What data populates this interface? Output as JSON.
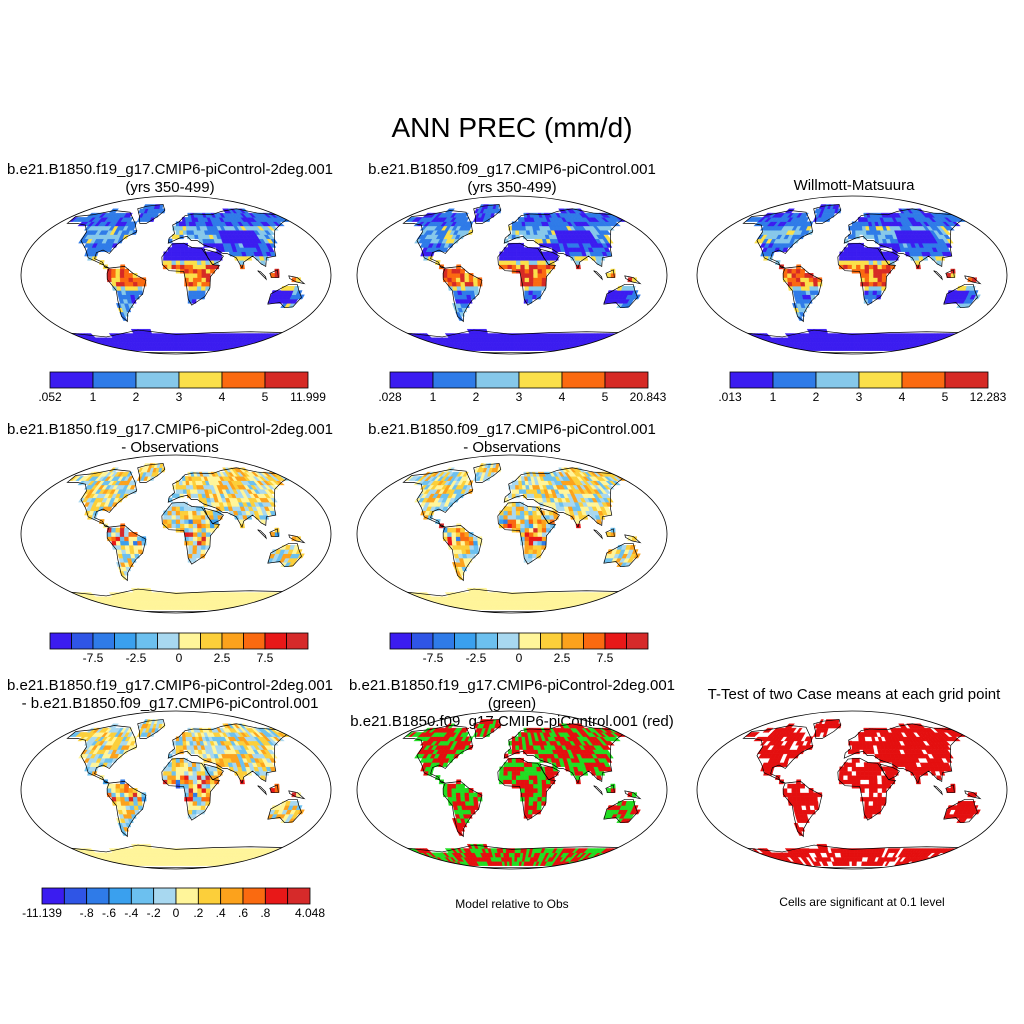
{
  "title": "ANN PREC (mm/d)",
  "panels": [
    {
      "title": "b.e21.B1850.f19_g17.CMIP6-piControl-2deg.001\n(yrs 350-499)"
    },
    {
      "title": "b.e21.B1850.f09_g17.CMIP6-piControl.001\n(yrs 350-499)"
    },
    {
      "title": "Willmott-Matsuura"
    },
    {
      "title": "b.e21.B1850.f19_g17.CMIP6-piControl-2deg.001\n- Observations"
    },
    {
      "title": "b.e21.B1850.f09_g17.CMIP6-piControl.001\n- Observations"
    },
    {
      "title": "b.e21.B1850.f19_g17.CMIP6-piControl-2deg.001\n- b.e21.B1850.f09_g17.CMIP6-piControl.001"
    },
    {
      "title": "b.e21.B1850.f19_g17.CMIP6-piControl-2deg.001 (green)\nb.e21.B1850.f09_g17.CMIP6-piControl.001 (red)"
    },
    {
      "title": "T-Test of two Case means at each grid point"
    }
  ],
  "notes": {
    "model_relative": "Model relative to Obs",
    "significance": "Cells are significant at 0.1 level"
  },
  "colorbars": {
    "abs1": {
      "colors": [
        "#3b1cf0",
        "#2f7be8",
        "#86c8ea",
        "#fbe04a",
        "#fb6a10",
        "#d62a25"
      ],
      "labels": [
        ".052",
        "1",
        "2",
        "3",
        "4",
        "5",
        "11.999"
      ]
    },
    "abs2": {
      "colors": [
        "#3b1cf0",
        "#2f7be8",
        "#86c8ea",
        "#fbe04a",
        "#fb6a10",
        "#d62a25"
      ],
      "labels": [
        ".028",
        "1",
        "2",
        "3",
        "4",
        "5",
        "20.843"
      ]
    },
    "abs3": {
      "colors": [
        "#3b1cf0",
        "#2f7be8",
        "#86c8ea",
        "#fbe04a",
        "#fb6a10",
        "#d62a25"
      ],
      "labels": [
        ".013",
        "1",
        "2",
        "3",
        "4",
        "5",
        "12.283"
      ]
    },
    "diff": {
      "colors": [
        "#3b1cf0",
        "#2f55e6",
        "#2f7be8",
        "#3aa0ee",
        "#6cc0ef",
        "#a8d8f0",
        "#fff59a",
        "#fccf3a",
        "#fca21c",
        "#fa6a10",
        "#e81818",
        "#d62a2a"
      ],
      "labels": [
        {
          "slot": 2,
          "text": "-7.5"
        },
        {
          "slot": 4,
          "text": "-2.5"
        },
        {
          "slot": 6,
          "text": "0"
        },
        {
          "slot": 8,
          "text": "2.5"
        },
        {
          "slot": 10,
          "text": "7.5"
        }
      ]
    },
    "diff3": {
      "colors": [
        "#3b1cf0",
        "#2f55e6",
        "#2f7be8",
        "#3aa0ee",
        "#6cc0ef",
        "#a8d8f0",
        "#fff59a",
        "#fccf3a",
        "#fca21c",
        "#fa6a10",
        "#e81818",
        "#d62a2a"
      ],
      "labels": [
        {
          "slot": 0,
          "text": "-11.139"
        },
        {
          "slot": 2,
          "text": "-.8"
        },
        {
          "slot": 3,
          "text": "-.6"
        },
        {
          "slot": 4,
          "text": "-.4"
        },
        {
          "slot": 5,
          "text": "-.2"
        },
        {
          "slot": 6,
          "text": "0"
        },
        {
          "slot": 7,
          "text": ".2"
        },
        {
          "slot": 8,
          "text": ".4"
        },
        {
          "slot": 9,
          "text": ".6"
        },
        {
          "slot": 10,
          "text": ".8"
        },
        {
          "slot": 12,
          "text": "4.048"
        }
      ]
    }
  },
  "colors": {
    "green": "#22dd22",
    "red": "#e40f0f",
    "ocean": "#ffffff",
    "outline": "#000000"
  }
}
